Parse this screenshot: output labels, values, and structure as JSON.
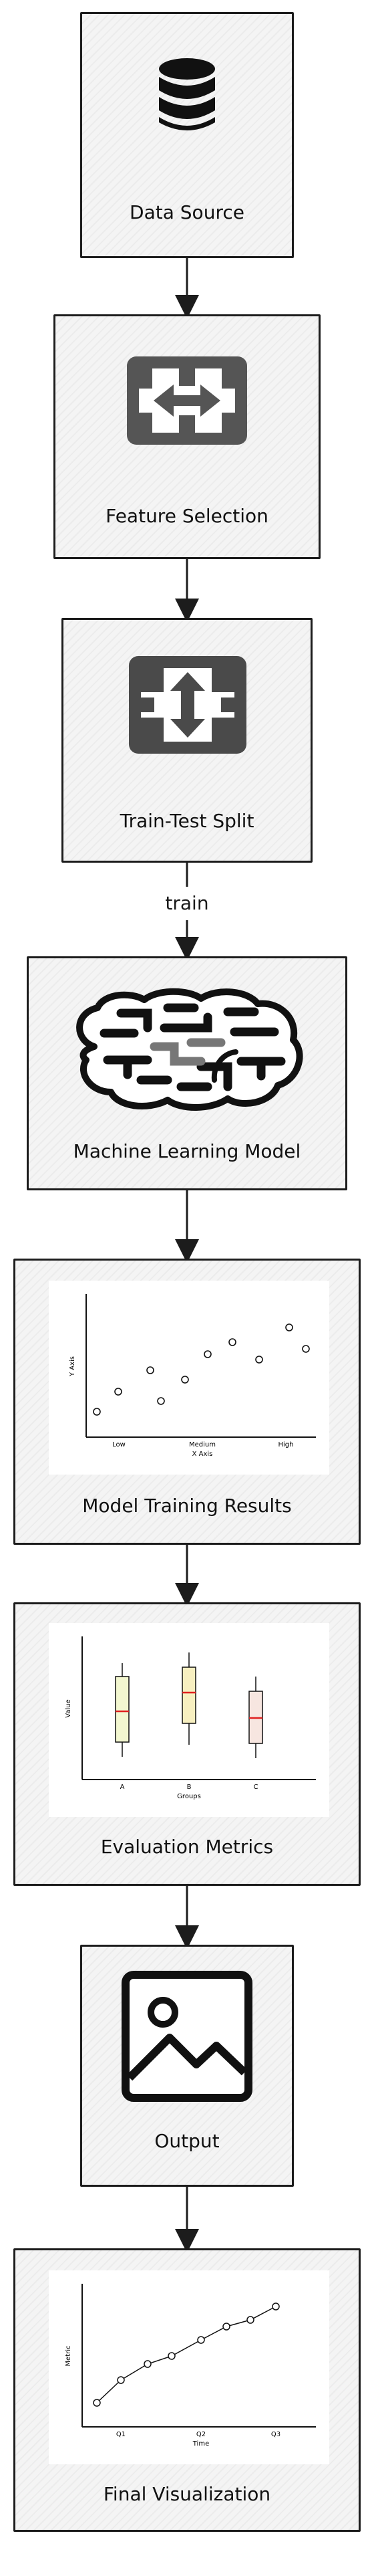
{
  "nodes": {
    "data_source": "Data Source",
    "feature_selection": "Feature Selection",
    "train_test_split": "Train-Test Split",
    "ml_model": "Machine Learning Model",
    "model_training_results": "Model Training Results",
    "evaluation_metrics": "Evaluation Metrics",
    "output": "Output",
    "final_visualization": "Final Visualization"
  },
  "edges": {
    "split_to_model_label": "train"
  },
  "charts": {
    "training_scatter": {
      "type": "scatter",
      "xlabel": "X Axis",
      "ylabel": "Y Axis",
      "categories": [
        "Low",
        "Medium",
        "High"
      ]
    },
    "eval_box": {
      "type": "box",
      "xlabel": "Groups",
      "ylabel": "Value",
      "categories": [
        "A",
        "B",
        "C"
      ]
    },
    "final_line": {
      "type": "line",
      "xlabel": "Time",
      "ylabel": "Metric",
      "categories": [
        "Q1",
        "Q2",
        "Q3"
      ]
    }
  }
}
